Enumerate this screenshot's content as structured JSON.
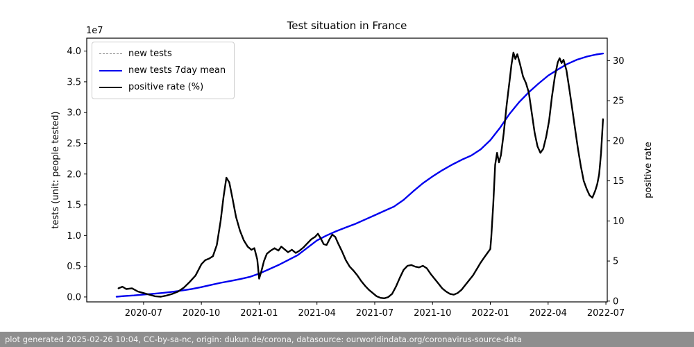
{
  "footer": {
    "text": "plot generated 2025-02-26 10:04, CC-by-sa-nc, origin: dukun.de/corona, datasource: ourworldindata.org/coronavirus-source-data"
  },
  "chart_data": {
    "type": "line",
    "title": "Test situation in France",
    "xlabel": "",
    "ylabel_left": "tests (unit: people tested)",
    "ylabel_right": "positive rate",
    "offset_text": "1e7",
    "x_unit": "months since 2020-01 (0 = 2020-01)",
    "xlim": [
      3.05,
      30.07
    ],
    "ylim_left": [
      -0.08,
      4.21
    ],
    "ylim_right": [
      -0.1,
      32.8
    ],
    "grid": false,
    "legend_position": "upper-left",
    "xticks": [
      {
        "m": 6,
        "label": "2020-07"
      },
      {
        "m": 9,
        "label": "2020-10"
      },
      {
        "m": 12,
        "label": "2021-01"
      },
      {
        "m": 15,
        "label": "2021-04"
      },
      {
        "m": 18,
        "label": "2021-07"
      },
      {
        "m": 21,
        "label": "2021-10"
      },
      {
        "m": 24,
        "label": "2022-01"
      },
      {
        "m": 27,
        "label": "2022-04"
      },
      {
        "m": 30,
        "label": "2022-07"
      }
    ],
    "yticks_left": [
      0.0,
      0.5,
      1.0,
      1.5,
      2.0,
      2.5,
      3.0,
      3.5,
      4.0
    ],
    "yticks_left_unit": "1e7",
    "yticks_right": [
      0,
      5,
      10,
      15,
      20,
      25,
      30
    ],
    "legend": [
      {
        "label": "new tests",
        "color": "#7f7f7f",
        "style": "dashed"
      },
      {
        "label": "new tests 7day mean",
        "color": "#0000ee",
        "style": "solid"
      },
      {
        "label": "positive rate (%)",
        "color": "#000000",
        "style": "solid"
      }
    ],
    "series": [
      {
        "name": "new tests",
        "axis": "left",
        "color": "#7f7f7f",
        "dash": "7 4",
        "width": 1.4,
        "points_ref": 1
      },
      {
        "name": "new tests 7day mean",
        "axis": "left",
        "color": "#0000ee",
        "dash": null,
        "width": 2.4,
        "points": [
          [
            4.6,
            0.005
          ],
          [
            5,
            0.015
          ],
          [
            5.5,
            0.025
          ],
          [
            6,
            0.04
          ],
          [
            6.5,
            0.052
          ],
          [
            7,
            0.066
          ],
          [
            7.5,
            0.085
          ],
          [
            8,
            0.105
          ],
          [
            8.5,
            0.13
          ],
          [
            9,
            0.16
          ],
          [
            9.5,
            0.195
          ],
          [
            10,
            0.23
          ],
          [
            10.5,
            0.26
          ],
          [
            11,
            0.29
          ],
          [
            11.5,
            0.325
          ],
          [
            12,
            0.38
          ],
          [
            12.5,
            0.45
          ],
          [
            13,
            0.52
          ],
          [
            13.5,
            0.6
          ],
          [
            14,
            0.68
          ],
          [
            14.5,
            0.8
          ],
          [
            15,
            0.92
          ],
          [
            15.5,
            1.0
          ],
          [
            16,
            1.07
          ],
          [
            16.5,
            1.13
          ],
          [
            17,
            1.19
          ],
          [
            17.5,
            1.26
          ],
          [
            18,
            1.33
          ],
          [
            18.5,
            1.4
          ],
          [
            19,
            1.47
          ],
          [
            19.5,
            1.58
          ],
          [
            20,
            1.72
          ],
          [
            20.5,
            1.85
          ],
          [
            21,
            1.96
          ],
          [
            21.5,
            2.06
          ],
          [
            22,
            2.15
          ],
          [
            22.5,
            2.23
          ],
          [
            23,
            2.3
          ],
          [
            23.5,
            2.4
          ],
          [
            24,
            2.55
          ],
          [
            24.5,
            2.75
          ],
          [
            25,
            2.98
          ],
          [
            25.5,
            3.17
          ],
          [
            26,
            3.33
          ],
          [
            26.5,
            3.47
          ],
          [
            27,
            3.6
          ],
          [
            27.5,
            3.7
          ],
          [
            28,
            3.79
          ],
          [
            28.5,
            3.86
          ],
          [
            29,
            3.91
          ],
          [
            29.5,
            3.945
          ],
          [
            29.85,
            3.96
          ]
        ]
      },
      {
        "name": "positive rate (%)",
        "axis": "right",
        "color": "#000000",
        "dash": null,
        "width": 2.4,
        "points": [
          [
            4.7,
            1.6
          ],
          [
            4.9,
            1.8
          ],
          [
            5.1,
            1.5
          ],
          [
            5.4,
            1.6
          ],
          [
            5.7,
            1.2
          ],
          [
            6,
            1.0
          ],
          [
            6.3,
            0.8
          ],
          [
            6.6,
            0.6
          ],
          [
            6.9,
            0.55
          ],
          [
            7.2,
            0.7
          ],
          [
            7.5,
            0.9
          ],
          [
            7.8,
            1.2
          ],
          [
            8.1,
            1.7
          ],
          [
            8.4,
            2.4
          ],
          [
            8.7,
            3.2
          ],
          [
            9,
            4.6
          ],
          [
            9.2,
            5.1
          ],
          [
            9.4,
            5.3
          ],
          [
            9.6,
            5.6
          ],
          [
            9.8,
            7.0
          ],
          [
            10,
            10.0
          ],
          [
            10.15,
            13.0
          ],
          [
            10.3,
            15.4
          ],
          [
            10.45,
            14.8
          ],
          [
            10.6,
            13.0
          ],
          [
            10.8,
            10.5
          ],
          [
            11,
            8.8
          ],
          [
            11.2,
            7.6
          ],
          [
            11.4,
            6.8
          ],
          [
            11.6,
            6.4
          ],
          [
            11.75,
            6.6
          ],
          [
            11.9,
            5.2
          ],
          [
            12,
            2.8
          ],
          [
            12.1,
            3.6
          ],
          [
            12.25,
            5.0
          ],
          [
            12.4,
            5.9
          ],
          [
            12.6,
            6.3
          ],
          [
            12.8,
            6.6
          ],
          [
            13,
            6.3
          ],
          [
            13.15,
            6.8
          ],
          [
            13.3,
            6.5
          ],
          [
            13.5,
            6.1
          ],
          [
            13.7,
            6.4
          ],
          [
            13.9,
            6.0
          ],
          [
            14.1,
            6.3
          ],
          [
            14.3,
            6.7
          ],
          [
            14.5,
            7.2
          ],
          [
            14.7,
            7.7
          ],
          [
            14.9,
            8.0
          ],
          [
            15.05,
            8.4
          ],
          [
            15.2,
            7.8
          ],
          [
            15.35,
            7.1
          ],
          [
            15.5,
            7.0
          ],
          [
            15.65,
            7.7
          ],
          [
            15.8,
            8.3
          ],
          [
            15.95,
            8.0
          ],
          [
            16.1,
            7.2
          ],
          [
            16.3,
            6.2
          ],
          [
            16.5,
            5.1
          ],
          [
            16.7,
            4.3
          ],
          [
            16.9,
            3.8
          ],
          [
            17.1,
            3.2
          ],
          [
            17.3,
            2.5
          ],
          [
            17.5,
            1.9
          ],
          [
            17.7,
            1.4
          ],
          [
            17.9,
            1.0
          ],
          [
            18.1,
            0.6
          ],
          [
            18.3,
            0.4
          ],
          [
            18.5,
            0.35
          ],
          [
            18.7,
            0.5
          ],
          [
            18.9,
            0.9
          ],
          [
            19.1,
            1.8
          ],
          [
            19.3,
            2.9
          ],
          [
            19.5,
            3.9
          ],
          [
            19.7,
            4.4
          ],
          [
            19.9,
            4.5
          ],
          [
            20.1,
            4.3
          ],
          [
            20.3,
            4.2
          ],
          [
            20.5,
            4.4
          ],
          [
            20.7,
            4.1
          ],
          [
            20.9,
            3.4
          ],
          [
            21.1,
            2.8
          ],
          [
            21.3,
            2.2
          ],
          [
            21.5,
            1.6
          ],
          [
            21.7,
            1.2
          ],
          [
            21.9,
            0.9
          ],
          [
            22.1,
            0.8
          ],
          [
            22.3,
            1.0
          ],
          [
            22.5,
            1.4
          ],
          [
            22.7,
            2.0
          ],
          [
            22.9,
            2.6
          ],
          [
            23.1,
            3.2
          ],
          [
            23.3,
            4.0
          ],
          [
            23.5,
            4.8
          ],
          [
            23.7,
            5.5
          ],
          [
            23.85,
            6.0
          ],
          [
            24,
            6.5
          ],
          [
            24.05,
            8.0
          ],
          [
            24.15,
            12.0
          ],
          [
            24.25,
            17.0
          ],
          [
            24.35,
            18.5
          ],
          [
            24.45,
            17.3
          ],
          [
            24.55,
            18.2
          ],
          [
            24.7,
            21.0
          ],
          [
            24.85,
            24.5
          ],
          [
            25,
            27.5
          ],
          [
            25.1,
            29.5
          ],
          [
            25.2,
            31.0
          ],
          [
            25.3,
            30.2
          ],
          [
            25.4,
            30.8
          ],
          [
            25.55,
            29.5
          ],
          [
            25.7,
            28.0
          ],
          [
            25.85,
            27.2
          ],
          [
            26,
            26.0
          ],
          [
            26.15,
            23.5
          ],
          [
            26.3,
            21.0
          ],
          [
            26.45,
            19.3
          ],
          [
            26.6,
            18.5
          ],
          [
            26.75,
            19.0
          ],
          [
            26.9,
            20.5
          ],
          [
            27.05,
            22.5
          ],
          [
            27.2,
            25.5
          ],
          [
            27.35,
            28.0
          ],
          [
            27.5,
            29.8
          ],
          [
            27.6,
            30.3
          ],
          [
            27.7,
            29.7
          ],
          [
            27.8,
            30.1
          ],
          [
            27.95,
            28.8
          ],
          [
            28.1,
            26.5
          ],
          [
            28.25,
            24.0
          ],
          [
            28.4,
            21.5
          ],
          [
            28.55,
            19.0
          ],
          [
            28.7,
            16.8
          ],
          [
            28.85,
            15.0
          ],
          [
            29,
            14.0
          ],
          [
            29.15,
            13.2
          ],
          [
            29.3,
            12.9
          ],
          [
            29.45,
            13.8
          ],
          [
            29.55,
            14.6
          ],
          [
            29.65,
            15.8
          ],
          [
            29.75,
            18.5
          ],
          [
            29.85,
            22.7
          ]
        ]
      }
    ]
  }
}
